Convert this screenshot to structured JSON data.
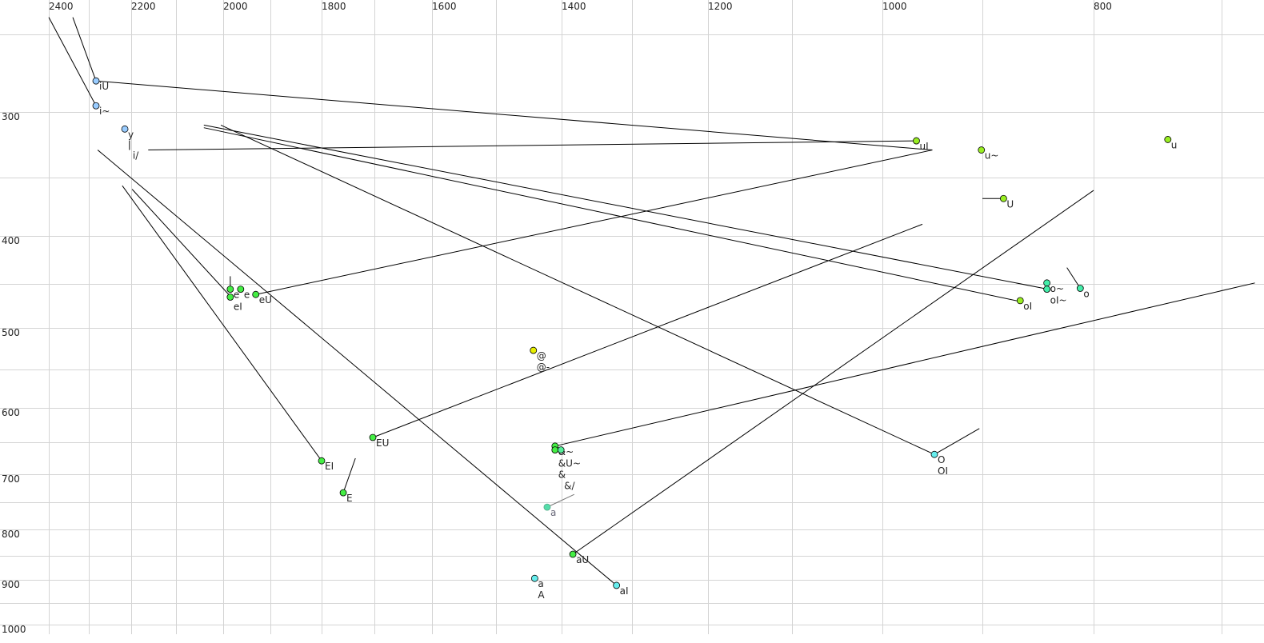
{
  "chart_data": {
    "type": "scatter",
    "title": "",
    "xlabel": "",
    "ylabel": "",
    "x_axis": {
      "position": "top",
      "reversed": true,
      "scale": "nonlinear (bark-like)",
      "xlim": [
        2400,
        700
      ],
      "tick_labels": [
        "2400",
        "2200",
        "2000",
        "1800",
        "1600",
        "1400",
        "1200",
        "1000",
        "800"
      ],
      "gridlines": [
        2400,
        2300,
        2200,
        2100,
        2000,
        1900,
        1800,
        1700,
        1600,
        1500,
        1400,
        1300,
        1200,
        1100,
        1000,
        900,
        800,
        700
      ]
    },
    "y_axis": {
      "position": "left",
      "reversed": true,
      "scale": "nonlinear (bark-like)",
      "ylim": [
        250,
        1000
      ],
      "tick_labels": [
        "300",
        "400",
        "500",
        "600",
        "700",
        "800",
        "900",
        "1000"
      ],
      "gridlines": [
        250,
        300,
        350,
        400,
        450,
        500,
        550,
        600,
        650,
        700,
        750,
        800,
        850,
        900,
        950,
        1000
      ]
    },
    "grid": true,
    "colors": {
      "i": "#99ccff",
      "e": "#44ee44",
      "u": "#99ee22",
      "o": "#44eeaa",
      "a": "#66eeee",
      "schwa": "#e8f000",
      "a_gray": "#55ddaa"
    },
    "points": [
      {
        "labels": [
          "iU"
        ],
        "x": 2283,
        "y": 280,
        "color": "#99ccff"
      },
      {
        "labels": [
          "i~"
        ],
        "x": 2283,
        "y": 296,
        "color": "#99ccff"
      },
      {
        "labels": [
          "y"
        ],
        "x": 2215,
        "y": 313,
        "color": "#99ccff"
      },
      {
        "labels": [
          "i/"
        ],
        "x": 2204,
        "y": 329,
        "color": null
      },
      {
        "labels": [
          "e"
        ],
        "x": 1985,
        "y": 456,
        "color": "#44ee44"
      },
      {
        "labels": [
          "e"
        ],
        "x": 1963,
        "y": 456,
        "color": "#44ee44"
      },
      {
        "labels": [
          "eI"
        ],
        "x": 1985,
        "y": 465,
        "color": "#44ee44"
      },
      {
        "labels": [
          "eU"
        ],
        "x": 1931,
        "y": 462,
        "color": "#44ee44"
      },
      {
        "labels": [
          "@",
          "@-"
        ],
        "x": 1443,
        "y": 527,
        "color": "#e8f000"
      },
      {
        "labels": [
          "EU"
        ],
        "x": 1703,
        "y": 643,
        "color": "#44ee44"
      },
      {
        "labels": [
          "EI"
        ],
        "x": 1800,
        "y": 679,
        "color": "#44ee44"
      },
      {
        "labels": [
          "E"
        ],
        "x": 1759,
        "y": 733,
        "color": "#44ee44"
      },
      {
        "labels": [
          "&~"
        ],
        "x": 1410,
        "y": 656,
        "color": "#44ee44"
      },
      {
        "labels": [
          "&U~",
          "&"
        ],
        "x": 1410,
        "y": 662,
        "color": "#44ee44"
      },
      {
        "labels": [
          "",
          "",
          "&/"
        ],
        "x": 1401,
        "y": 662,
        "color": "#55ee99"
      },
      {
        "labels": [
          "a"
        ],
        "x": 1422,
        "y": 759,
        "color": "#55ddaa",
        "muted": true
      },
      {
        "labels": [
          "aU"
        ],
        "x": 1384,
        "y": 847,
        "color": "#44ee44"
      },
      {
        "labels": [
          "a",
          "A"
        ],
        "x": 1441,
        "y": 897,
        "color": "#66eeee"
      },
      {
        "labels": [
          "aI"
        ],
        "x": 1322,
        "y": 912,
        "color": "#66eeee"
      },
      {
        "labels": [
          "uI"
        ],
        "x": 966,
        "y": 322,
        "color": "#99ee22"
      },
      {
        "labels": [
          "u~"
        ],
        "x": 901,
        "y": 329,
        "color": "#99ee22"
      },
      {
        "labels": [
          "U"
        ],
        "x": 881,
        "y": 368,
        "color": "#99ee22"
      },
      {
        "labels": [
          "u"
        ],
        "x": 742,
        "y": 321,
        "color": "#99ee22"
      },
      {
        "labels": [
          "o~"
        ],
        "x": 842,
        "y": 449,
        "color": "#44eeaa"
      },
      {
        "labels": [
          "oI~"
        ],
        "x": 842,
        "y": 456,
        "color": "#44eeaa"
      },
      {
        "labels": [
          "o"
        ],
        "x": 812,
        "y": 455,
        "color": "#44eeaa"
      },
      {
        "labels": [
          "oI"
        ],
        "x": 866,
        "y": 469,
        "color": "#99ee22"
      },
      {
        "labels": [
          "O",
          "OI"
        ],
        "x": 948,
        "y": 669,
        "color": "#66eeee"
      }
    ],
    "trajectories": [
      {
        "from": [
          2400,
          239
        ],
        "to": [
          2283,
          296
        ]
      },
      {
        "from": [
          2340,
          239
        ],
        "to": [
          2283,
          280
        ]
      },
      {
        "from": [
          2283,
          280
        ],
        "to": [
          950,
          329
        ]
      },
      {
        "from": [
          2162,
          329
        ],
        "to": [
          966,
          322
        ]
      },
      {
        "from": [
          2041,
          310
        ],
        "to": [
          841,
          456
        ]
      },
      {
        "from": [
          2041,
          312
        ],
        "to": [
          866,
          470
        ]
      },
      {
        "from": [
          2005,
          310
        ],
        "to": [
          948,
          669
        ]
      },
      {
        "from": [
          2279,
          329
        ],
        "to": [
          1322,
          912
        ]
      },
      {
        "from": [
          2221,
          357
        ],
        "to": [
          1800,
          679
        ]
      },
      {
        "from": [
          2198,
          360
        ],
        "to": [
          1985,
          464
        ]
      },
      {
        "from": [
          1985,
          442
        ],
        "to": [
          1985,
          456
        ]
      },
      {
        "from": [
          1931,
          462
        ],
        "to": [
          950,
          329
        ]
      },
      {
        "from": [
          1703,
          643
        ],
        "to": [
          960,
          390
        ]
      },
      {
        "from": [
          1759,
          733
        ],
        "to": [
          1736,
          675
        ]
      },
      {
        "from": [
          1410,
          656
        ],
        "to": [
          674,
          449
        ]
      },
      {
        "from": [
          1422,
          759
        ],
        "to": [
          1382,
          736
        ],
        "muted": true
      },
      {
        "from": [
          1384,
          847
        ],
        "to": [
          800,
          361
        ]
      },
      {
        "from": [
          948,
          669
        ],
        "to": [
          903,
          630
        ]
      },
      {
        "from": [
          900,
          368
        ],
        "to": [
          881,
          368
        ]
      },
      {
        "from": [
          824,
          433
        ],
        "to": [
          812,
          455
        ]
      }
    ]
  }
}
